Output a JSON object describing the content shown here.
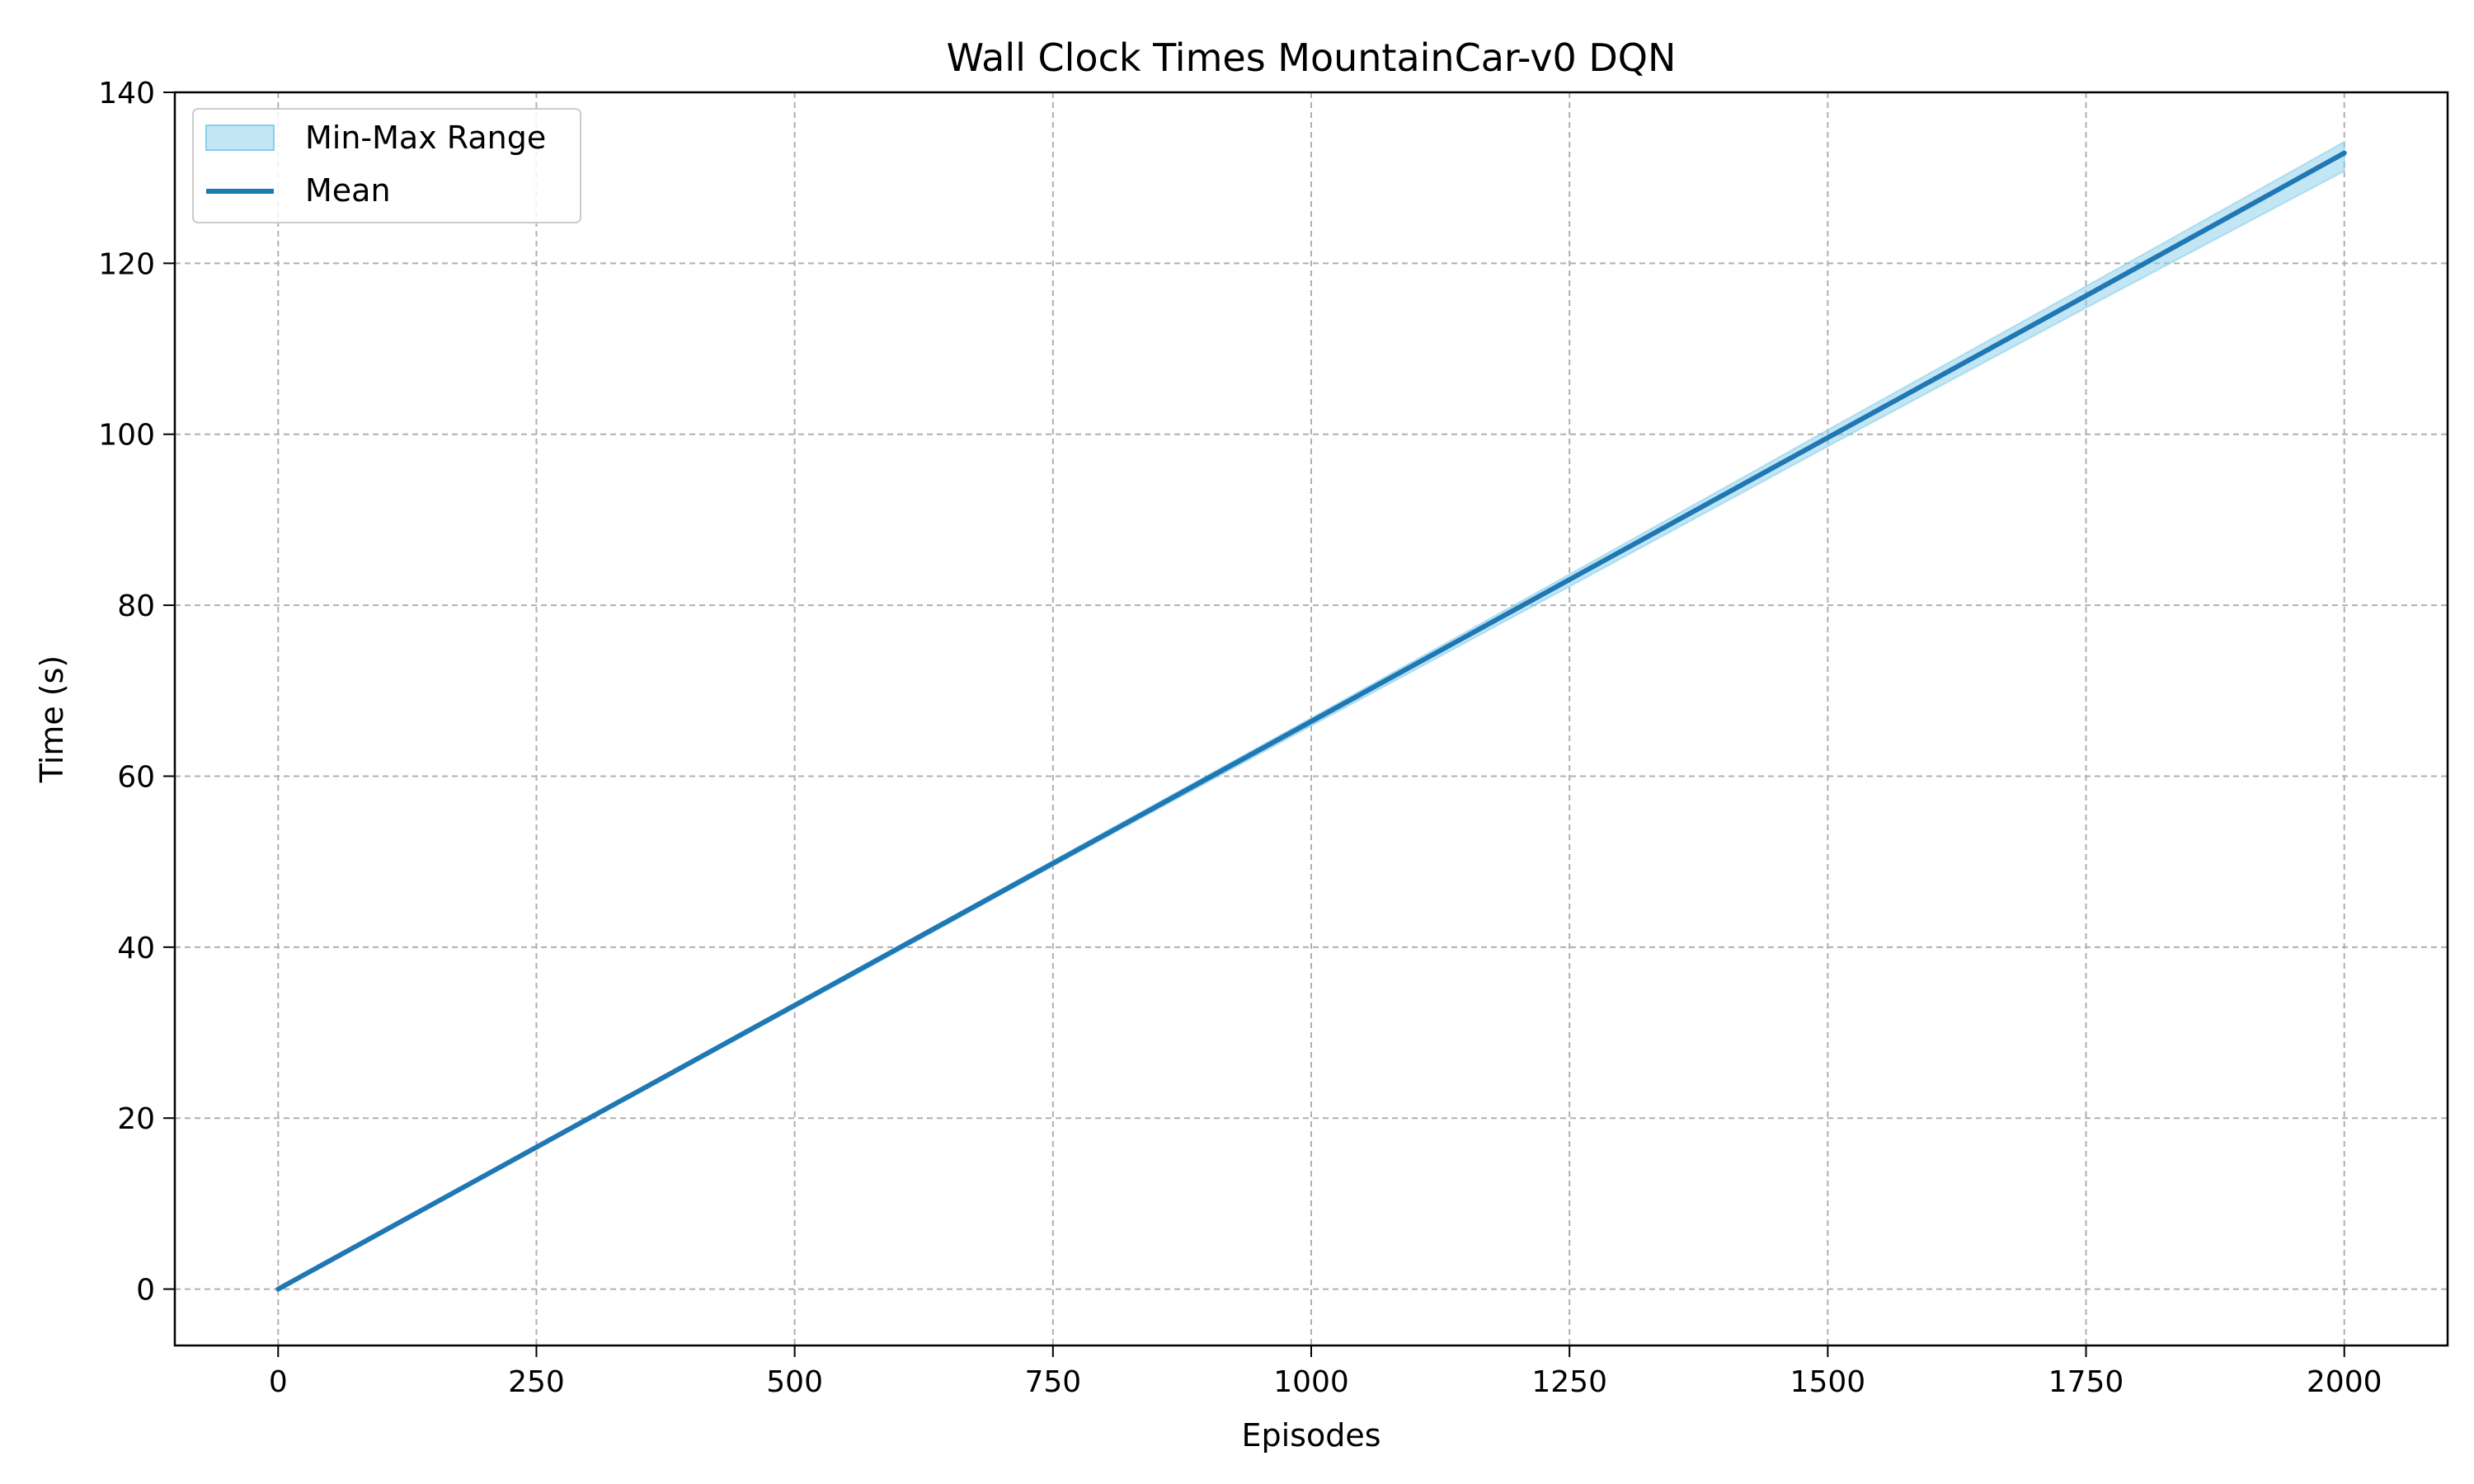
{
  "chart_data": {
    "type": "line",
    "title": "Wall Clock Times MountainCar-v0 DQN",
    "xlabel": "Episodes",
    "ylabel": "Time (s)",
    "xlim": [
      -100,
      2100
    ],
    "ylim": [
      -6.6,
      140
    ],
    "xticks": [
      0,
      250,
      500,
      750,
      1000,
      1250,
      1500,
      1750,
      2000
    ],
    "yticks": [
      0,
      20,
      40,
      60,
      80,
      100,
      120,
      140
    ],
    "grid": true,
    "legend_placement": "top-left",
    "series": [
      {
        "name": "Mean",
        "kind": "line",
        "color": "#1f77b4",
        "x": [
          0,
          250,
          500,
          750,
          1000,
          1250,
          1500,
          1750,
          2000
        ],
        "y": [
          0,
          16.6,
          33.2,
          49.8,
          66.4,
          83.0,
          99.6,
          116.2,
          132.9
        ]
      },
      {
        "name": "Min-Max Range",
        "kind": "band",
        "color": "#87ceeb",
        "x": [
          0,
          250,
          500,
          750,
          1000,
          1250,
          1500,
          1750,
          2000
        ],
        "y_min": [
          0,
          16.5,
          32.9,
          49.5,
          65.9,
          82.2,
          98.6,
          114.8,
          130.8
        ],
        "y_max": [
          0,
          16.7,
          33.4,
          50.1,
          66.8,
          83.6,
          100.5,
          117.3,
          134.2
        ]
      }
    ]
  }
}
